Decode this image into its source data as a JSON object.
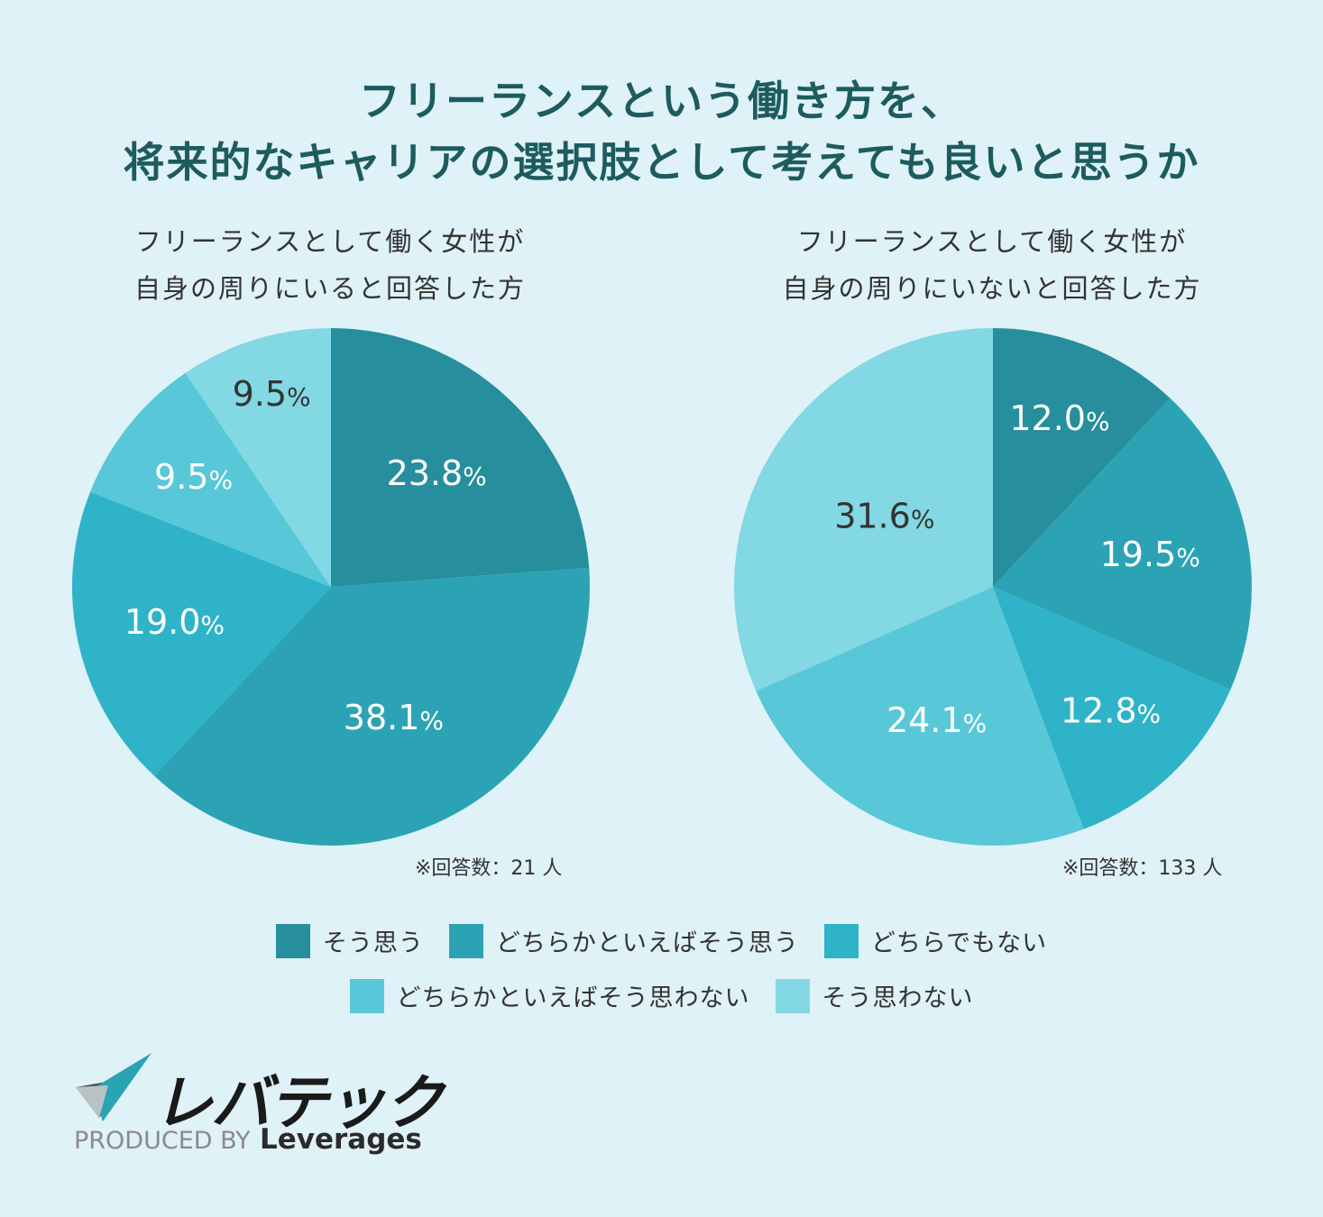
{
  "title_line1": "フリーランスという働き方を、",
  "title_line2": "将来的なキャリアの選択肢として考えても良いと思うか",
  "colors": {
    "sou_omou": "#268e9c",
    "dochiraka_omou": "#2ca3b4",
    "dochira_demo_nai": "#2eb3c8",
    "dochiraka_omowanai": "#58c7d8",
    "sou_omowanai": "#82d8e3"
  },
  "legend": [
    {
      "label": "そう思う",
      "color": "#268e9c"
    },
    {
      "label": "どちらかといえばそう思う",
      "color": "#2ca3b4"
    },
    {
      "label": "どちらでもない",
      "color": "#2eb3c8"
    },
    {
      "label": "どちらかといえばそう思わない",
      "color": "#58c7d8"
    },
    {
      "label": "そう思わない",
      "color": "#82d8e3"
    }
  ],
  "chart_data": [
    {
      "type": "pie",
      "title_line1": "フリーランスとして働く女性が",
      "title_line2": "自身の周りにいると回答した方",
      "note": "※回答数：21 人",
      "unit": "%",
      "categories": [
        "そう思う",
        "どちらかといえばそう思う",
        "どちらでもない",
        "どちらかといえばそう思わない",
        "そう思わない"
      ],
      "values": [
        23.8,
        38.1,
        19.0,
        9.5,
        9.5
      ],
      "labels": [
        "23.8",
        "38.1",
        "19.0",
        "9.5",
        "9.5"
      ],
      "label_colors": [
        "#ffffff",
        "#ffffff",
        "#ffffff",
        "#ffffff",
        "#333333"
      ]
    },
    {
      "type": "pie",
      "title_line1": "フリーランスとして働く女性が",
      "title_line2": "自身の周りにいないと回答した方",
      "note": "※回答数：133 人",
      "unit": "%",
      "categories": [
        "そう思う",
        "どちらかといえばそう思う",
        "どちらでもない",
        "どちらかといえばそう思わない",
        "そう思わない"
      ],
      "values": [
        12.0,
        19.5,
        12.8,
        24.1,
        31.6
      ],
      "labels": [
        "12.0",
        "19.5",
        "12.8",
        "24.1",
        "31.6"
      ],
      "label_colors": [
        "#ffffff",
        "#ffffff",
        "#ffffff",
        "#ffffff",
        "#333333"
      ]
    }
  ],
  "logo": {
    "brand": "レバテック",
    "produced_by": "PRODUCED BY",
    "company": "Leverages"
  }
}
